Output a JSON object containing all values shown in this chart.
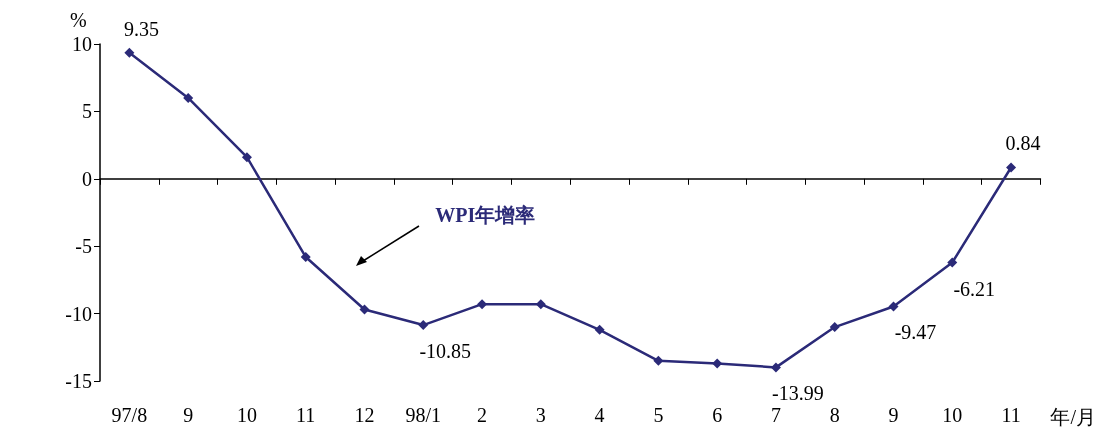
{
  "chart_data": {
    "type": "line",
    "xlabel": "年/月",
    "ylabel": "%",
    "categories": [
      "97/8",
      "9",
      "10",
      "11",
      "12",
      "98/1",
      "2",
      "3",
      "4",
      "5",
      "6",
      "7",
      "8",
      "9",
      "10",
      "11"
    ],
    "series": [
      {
        "color": "#2b2a78",
        "values": [
          9.35,
          6.0,
          1.6,
          -5.8,
          -9.7,
          -10.85,
          -9.3,
          -9.3,
          -11.2,
          -13.5,
          -13.7,
          -13.99,
          -11.0,
          -9.47,
          -6.21,
          0.84
        ],
        "value_labels": [
          "9.35",
          null,
          null,
          null,
          null,
          "-10.85",
          null,
          null,
          null,
          null,
          null,
          "-13.99",
          null,
          "-9.47",
          "-6.21",
          "0.84"
        ]
      }
    ],
    "ylim": [
      -15,
      10
    ],
    "yticks": [
      -15,
      -10,
      -5,
      0,
      5,
      10
    ],
    "annotations": [
      "WPI年增率"
    ],
    "marker": "diamond",
    "line_style": "solid"
  }
}
